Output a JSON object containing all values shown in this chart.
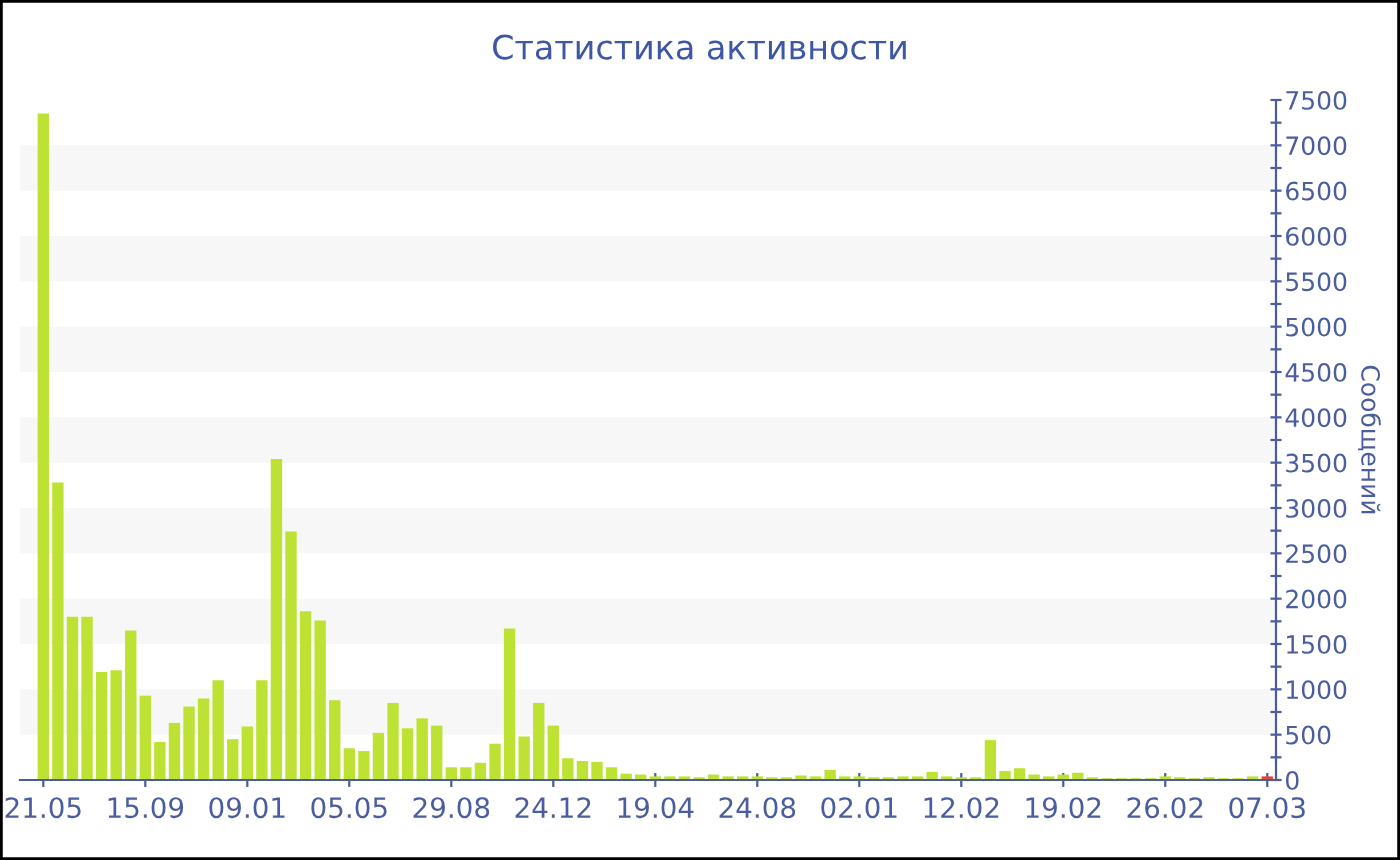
{
  "chart_data": {
    "type": "bar",
    "title": "Статистика активности",
    "ylabel": "Сообщений",
    "categories": [
      "21.05",
      null,
      null,
      null,
      null,
      null,
      null,
      "15.09",
      null,
      null,
      null,
      null,
      null,
      null,
      "09.01",
      null,
      null,
      null,
      null,
      null,
      null,
      "05.05",
      null,
      null,
      null,
      null,
      null,
      null,
      "29.08",
      null,
      null,
      null,
      null,
      null,
      null,
      "24.12",
      null,
      null,
      null,
      null,
      null,
      null,
      "19.04",
      null,
      null,
      null,
      null,
      null,
      null,
      "24.08",
      null,
      null,
      null,
      null,
      null,
      null,
      "02.01",
      null,
      null,
      null,
      null,
      null,
      null,
      "12.02",
      null,
      null,
      null,
      null,
      null,
      null,
      "19.02",
      null,
      null,
      null,
      null,
      null,
      null,
      "26.02",
      null,
      null,
      null,
      null,
      null,
      null,
      "07.03"
    ],
    "values": [
      7350,
      3280,
      1800,
      1800,
      1190,
      1210,
      1650,
      930,
      420,
      630,
      810,
      900,
      1100,
      450,
      590,
      1100,
      3540,
      2740,
      1860,
      1760,
      880,
      350,
      320,
      520,
      850,
      570,
      680,
      600,
      140,
      140,
      190,
      400,
      1670,
      480,
      850,
      600,
      240,
      210,
      200,
      140,
      70,
      60,
      40,
      40,
      40,
      30,
      60,
      40,
      40,
      40,
      30,
      30,
      50,
      40,
      110,
      40,
      40,
      30,
      30,
      40,
      40,
      90,
      40,
      30,
      30,
      440,
      100,
      130,
      60,
      40,
      60,
      80,
      30,
      20,
      20,
      20,
      20,
      40,
      30,
      20,
      30,
      20,
      20,
      40,
      40
    ],
    "colors": [
      "#bde234",
      "#bde234",
      "#bde234",
      "#bde234",
      "#bde234",
      "#bde234",
      "#bde234",
      "#bde234",
      "#bde234",
      "#bde234",
      "#bde234",
      "#bde234",
      "#bde234",
      "#bde234",
      "#bde234",
      "#bde234",
      "#bde234",
      "#bde234",
      "#bde234",
      "#bde234",
      "#bde234",
      "#bde234",
      "#bde234",
      "#bde234",
      "#bde234",
      "#bde234",
      "#bde234",
      "#bde234",
      "#bde234",
      "#bde234",
      "#bde234",
      "#bde234",
      "#bde234",
      "#bde234",
      "#bde234",
      "#bde234",
      "#bde234",
      "#bde234",
      "#bde234",
      "#bde234",
      "#bde234",
      "#bde234",
      "#bde234",
      "#bde234",
      "#bde234",
      "#bde234",
      "#bde234",
      "#bde234",
      "#bde234",
      "#bde234",
      "#bde234",
      "#bde234",
      "#bde234",
      "#bde234",
      "#bde234",
      "#bde234",
      "#bde234",
      "#bde234",
      "#bde234",
      "#bde234",
      "#bde234",
      "#bde234",
      "#bde234",
      "#bde234",
      "#bde234",
      "#bde234",
      "#bde234",
      "#bde234",
      "#bde234",
      "#bde234",
      "#bde234",
      "#bde234",
      "#bde234",
      "#bde234",
      "#bde234",
      "#bde234",
      "#bde234",
      "#bde234",
      "#bde234",
      "#bde234",
      "#bde234",
      "#bde234",
      "#bde234",
      "#bde234",
      "#e8452c"
    ],
    "ylim": [
      0,
      7500
    ],
    "yticks": [
      0,
      {
        "value": 250,
        "label": null
      },
      500,
      {
        "value": 750,
        "label": null
      },
      1000,
      {
        "value": 1250,
        "label": null
      },
      1500,
      {
        "value": 1750,
        "label": null
      },
      2000,
      {
        "value": 2250,
        "label": null
      },
      2500,
      {
        "value": 2750,
        "label": null
      },
      3000,
      {
        "value": 3250,
        "label": null
      },
      3500,
      {
        "value": 3750,
        "label": null
      },
      4000,
      {
        "value": 4250,
        "label": null
      },
      4500,
      {
        "value": 4750,
        "label": null
      },
      5000,
      {
        "value": 5250,
        "label": null
      },
      5500,
      {
        "value": 5750,
        "label": null
      },
      6000,
      {
        "value": 6250,
        "label": null
      },
      6500,
      {
        "value": 6750,
        "label": null
      },
      7000,
      {
        "value": 7250,
        "label": null
      },
      7500
    ],
    "bands": [
      {
        "axis": "y",
        "from": 500,
        "to": 1000,
        "color": "#f7f7f7"
      },
      {
        "axis": "y",
        "from": 1500,
        "to": 2000,
        "color": "#f7f7f7"
      },
      {
        "axis": "y",
        "from": 2500,
        "to": 3000,
        "color": "#f7f7f7"
      },
      {
        "axis": "y",
        "from": 3500,
        "to": 4000,
        "color": "#f7f7f7"
      },
      {
        "axis": "y",
        "from": 4500,
        "to": 5000,
        "color": "#f7f7f7"
      },
      {
        "axis": "y",
        "from": 5500,
        "to": 6000,
        "color": "#f7f7f7"
      },
      {
        "axis": "y",
        "from": 6500,
        "to": 7000,
        "color": "#f7f7f7"
      }
    ],
    "legend": false
  }
}
